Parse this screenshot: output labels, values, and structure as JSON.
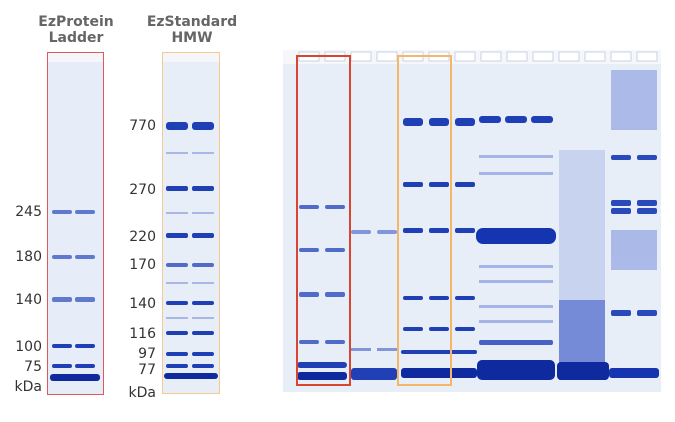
{
  "panels": {
    "ladder1": {
      "title_line1": "EzProtein",
      "title_line2": "Ladder",
      "frame_color": "#e0585a",
      "markers": [
        "245",
        "180",
        "140",
        "100",
        "75"
      ],
      "unit": "kDa"
    },
    "ladder2": {
      "title_line1": "EzStandard",
      "title_line2": "HMW",
      "frame_color": "#f7c98e",
      "markers": [
        "770",
        "270",
        "220",
        "170",
        "140",
        "116",
        "97",
        "77"
      ],
      "unit": "kDa"
    },
    "gel": {
      "box1_color": "#d9452f",
      "box2_color": "#f5b667"
    }
  },
  "colors": {
    "gel_bg": "#e7eef8",
    "band": "#1f3fb5"
  }
}
